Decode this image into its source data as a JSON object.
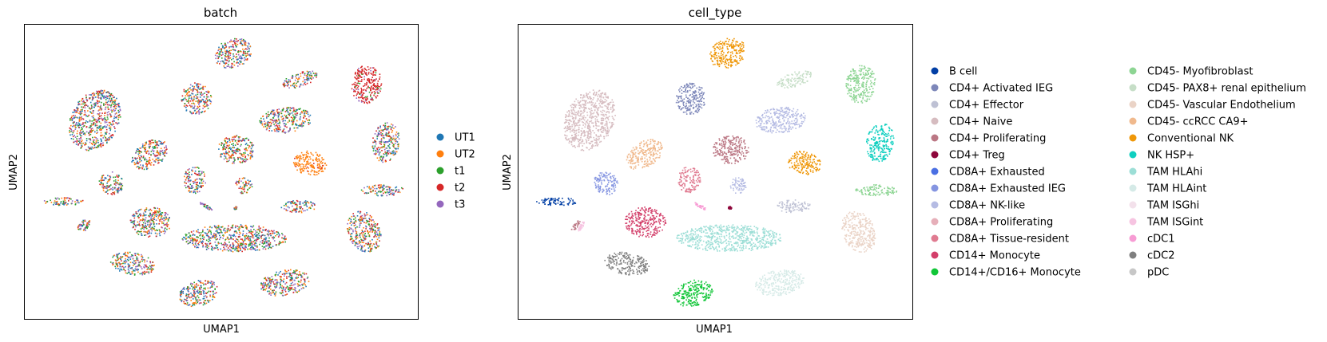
{
  "chart_data": [
    {
      "type": "scatter",
      "title": "batch",
      "xlabel": "UMAP1",
      "ylabel": "UMAP2",
      "grid": false,
      "ticks": false,
      "legend_position": "right",
      "series": [
        {
          "name": "UT1",
          "color": "#1f77b4"
        },
        {
          "name": "UT2",
          "color": "#ff7f0e"
        },
        {
          "name": "t1",
          "color": "#2ca02c"
        },
        {
          "name": "t2",
          "color": "#d62728"
        },
        {
          "name": "t3",
          "color": "#9467bd"
        }
      ]
    },
    {
      "type": "scatter",
      "title": "cell_type",
      "xlabel": "UMAP1",
      "ylabel": "UMAP2",
      "grid": false,
      "ticks": false,
      "legend_position": "right",
      "series": [
        {
          "name": "B cell",
          "color": "#023fa5"
        },
        {
          "name": "CD4+ Activated IEG",
          "color": "#7d87b9"
        },
        {
          "name": "CD4+ Effector",
          "color": "#bec1d4"
        },
        {
          "name": "CD4+ Naive",
          "color": "#d6bcc0"
        },
        {
          "name": "CD4+ Proliferating",
          "color": "#bb7784"
        },
        {
          "name": "CD4+ Treg",
          "color": "#8e063b"
        },
        {
          "name": "CD8A+ Exhausted",
          "color": "#4a6fe3"
        },
        {
          "name": "CD8A+ Exhausted IEG",
          "color": "#8595e1"
        },
        {
          "name": "CD8A+ NK-like",
          "color": "#b5bbe3"
        },
        {
          "name": "CD8A+ Proliferating",
          "color": "#e6afb9"
        },
        {
          "name": "CD8A+ Tissue-resident",
          "color": "#e07b91"
        },
        {
          "name": "CD14+ Monocyte",
          "color": "#d33f6a"
        },
        {
          "name": "CD14+/CD16+ Monocyte",
          "color": "#11c638"
        },
        {
          "name": "CD45- Myofibroblast",
          "color": "#8dd593"
        },
        {
          "name": "CD45- PAX8+ renal epithelium",
          "color": "#c6dec7"
        },
        {
          "name": "CD45- Vascular Endothelium",
          "color": "#ead3c6"
        },
        {
          "name": "CD45- ccRCC CA9+",
          "color": "#f0b98d"
        },
        {
          "name": "Conventional NK",
          "color": "#ef9708"
        },
        {
          "name": "NK HSP+",
          "color": "#0fcfc0"
        },
        {
          "name": "TAM HLAhi",
          "color": "#9cded6"
        },
        {
          "name": "TAM HLAint",
          "color": "#d5eae7"
        },
        {
          "name": "TAM ISGhi",
          "color": "#f3e1eb"
        },
        {
          "name": "TAM ISGint",
          "color": "#f6c4e1"
        },
        {
          "name": "cDC1",
          "color": "#f79cd4"
        },
        {
          "name": "cDC2",
          "color": "#7f7f7f"
        },
        {
          "name": "pDC",
          "color": "#c7c7c7"
        }
      ]
    }
  ]
}
